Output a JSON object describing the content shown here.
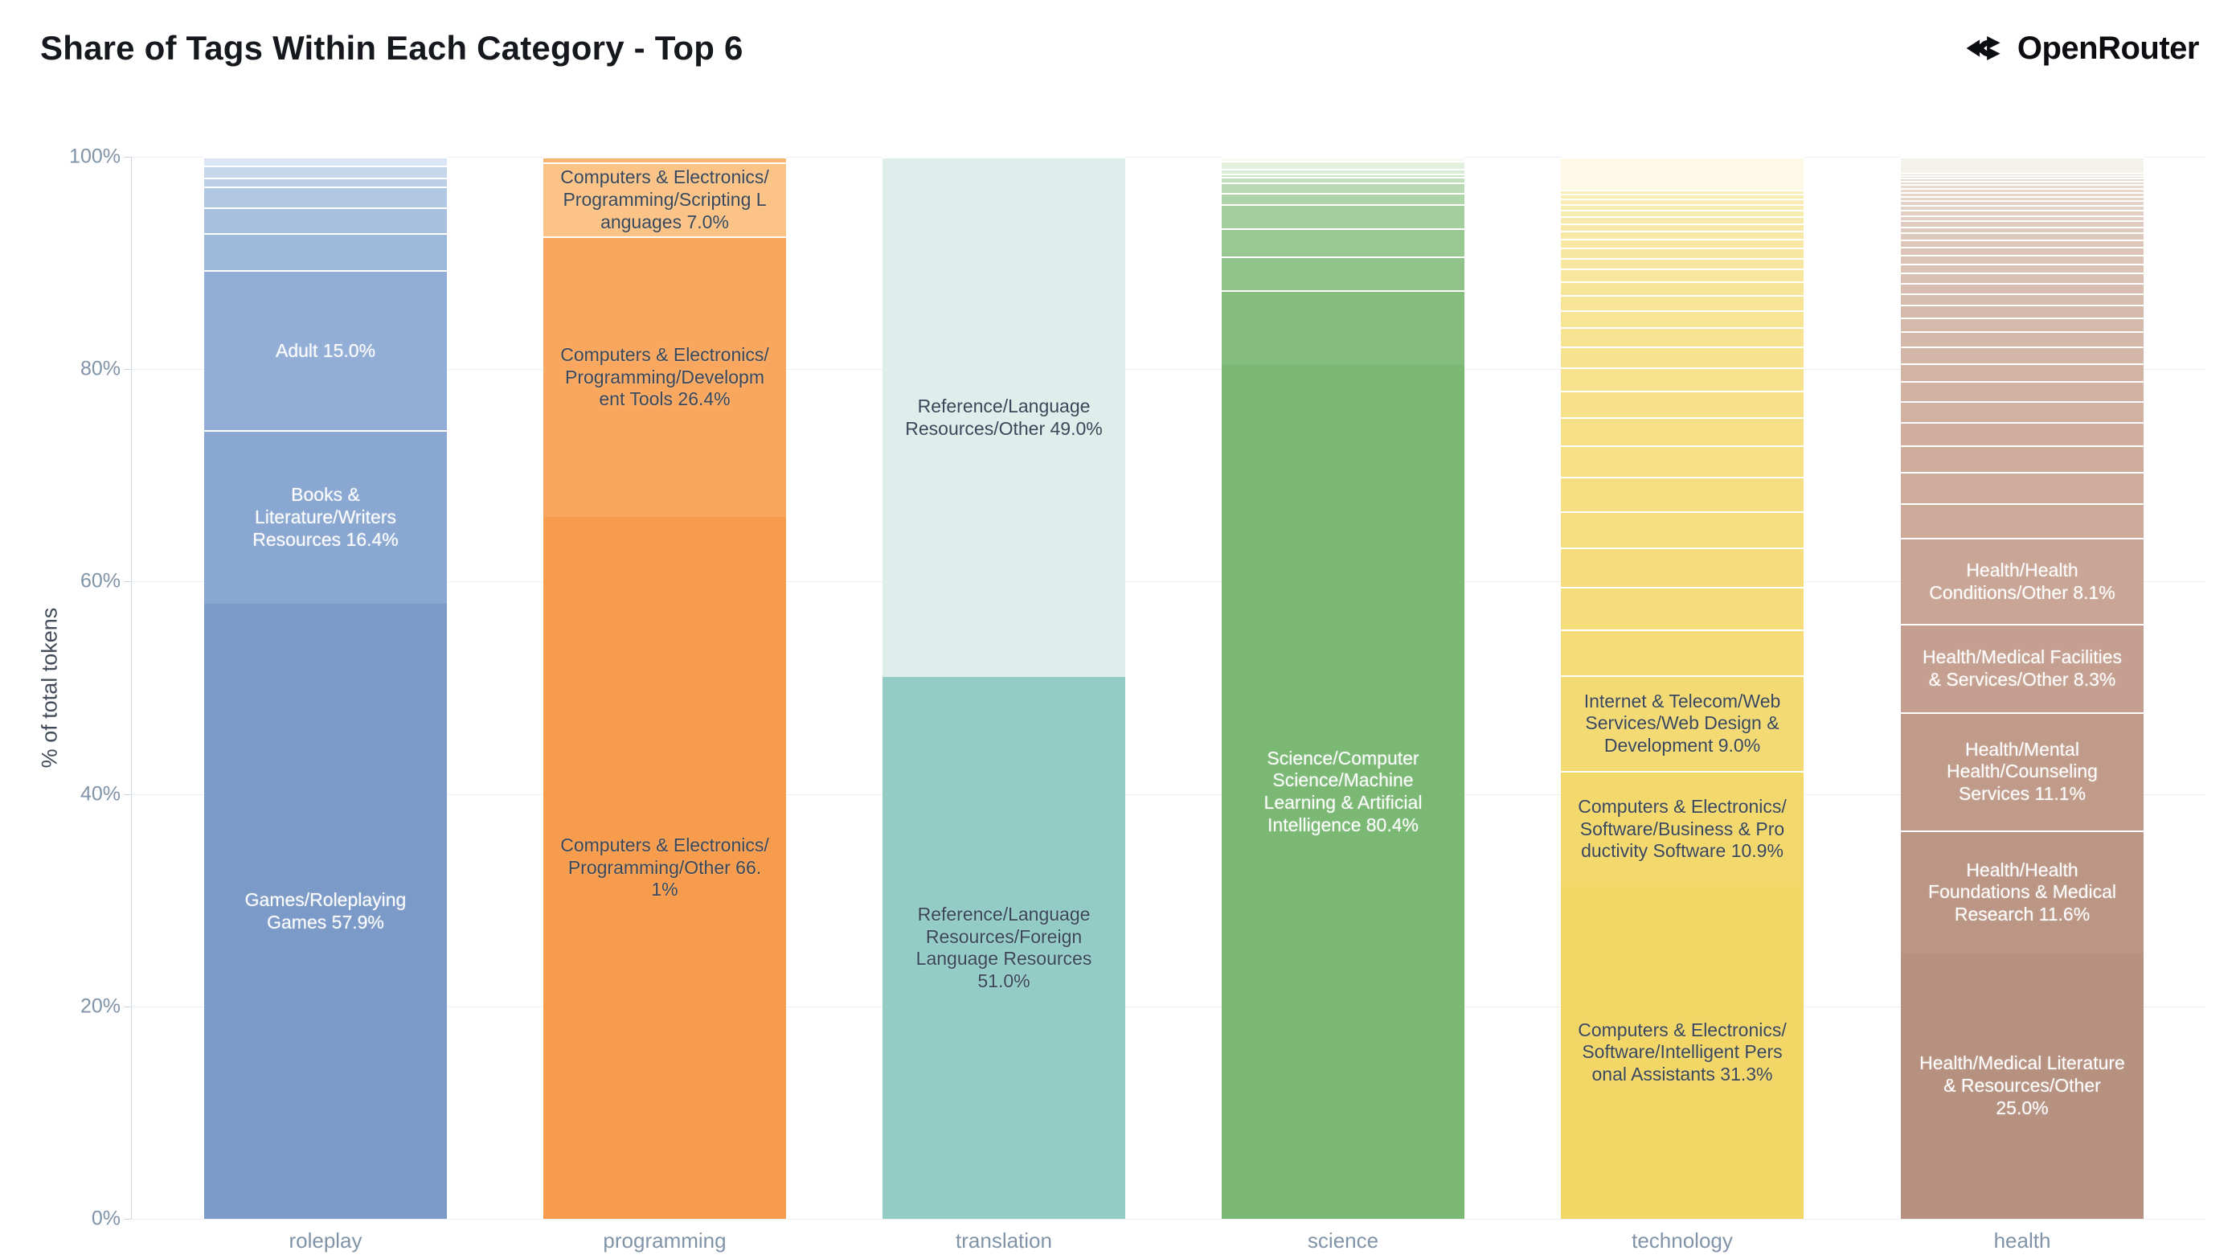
{
  "header": {
    "title": "Share of Tags Within Each Category - Top 6",
    "brand": "OpenRouter"
  },
  "chart_data": {
    "type": "bar",
    "stacking": "percent",
    "title": "Share of Tags Within Each Category - Top 6",
    "xlabel": "",
    "ylabel": "% of total tokens",
    "ylim": [
      0,
      100
    ],
    "yticks": [
      "0%",
      "20%",
      "40%",
      "60%",
      "80%",
      "100%"
    ],
    "grid": true,
    "legend": false,
    "categories": [
      "roleplay",
      "programming",
      "translation",
      "science",
      "technology",
      "health"
    ],
    "bars": [
      {
        "category": "roleplay",
        "segments": [
          {
            "name": "Games/Roleplaying Games",
            "pct": 57.9,
            "label": "Games/Roleplaying Games 57.9%",
            "color": "#7b9ac7",
            "text_color": "#ffffff"
          },
          {
            "name": "Books & Literature/Writers Resources",
            "pct": 16.4,
            "label": "Books & Literature/Writers Resources 16.4%",
            "color": "#8aa7d1",
            "text_color": "#ffffff"
          },
          {
            "name": "Adult",
            "pct": 15.0,
            "label": "Adult 15.0%",
            "color": "#93aed6",
            "text_color": "#ffffff"
          }
        ],
        "unlabeled_small_segments": {
          "values_pct_bottom_to_top": [
            3.5,
            2.4,
            2.0,
            0.8,
            1.2,
            0.8
          ],
          "color_start": "#9db9da",
          "color_end": "#cfdeee",
          "top_color": "#dae6f3"
        }
      },
      {
        "category": "programming",
        "segments": [
          {
            "name": "Computers & Electronics/Programming/Other",
            "pct": 66.1,
            "label": "Computers & Electronics/Programming/Other 66.1%",
            "color": "#f79c4c",
            "text_color": "#3a4759"
          },
          {
            "name": "Computers & Electronics/Programming/Development Tools",
            "pct": 26.4,
            "label": "Computers & Electronics/Programming/Development Tools 26.4%",
            "color": "#f9a75e",
            "text_color": "#3a4759"
          },
          {
            "name": "Computers & Electronics/Programming/Scripting Languages",
            "pct": 7.0,
            "label": "Computers & Electronics/Programming/Scripting Languages 7.0%",
            "color": "#fbc386",
            "text_color": "#3a4759"
          }
        ],
        "unlabeled_small_segments": {
          "values_pct_bottom_to_top": [
            0.5
          ],
          "color_start": "#f8b470",
          "color_end": "#f8b470"
        }
      },
      {
        "category": "translation",
        "segments": [
          {
            "name": "Reference/Language Resources/Foreign Language Resources",
            "pct": 51.0,
            "label": "Reference/Language Resources/Foreign Language Resources 51.0%",
            "color": "#93cbc5",
            "text_color": "#3a4759"
          },
          {
            "name": "Reference/Language Resources/Other",
            "pct": 49.0,
            "label": "Reference/Language Resources/Other 49.0%",
            "color": "#ddeeeb",
            "text_color": "#3a4759"
          }
        ],
        "unlabeled_small_segments": {
          "values_pct_bottom_to_top": [],
          "color_start": "#93cbc5",
          "color_end": "#ddeeeb"
        }
      },
      {
        "category": "science",
        "segments": [
          {
            "name": "Science/Computer Science/Machine Learning & Artificial Intelligence",
            "pct": 80.4,
            "label": "Science/Computer Science/Machine Learning & Artificial Intelligence 80.4%",
            "color": "#7ab874",
            "text_color": "#ffffff"
          }
        ],
        "unlabeled_small_segments": {
          "values_pct_bottom_to_top": [
            7.0,
            3.2,
            2.7,
            2.2,
            1.1,
            1.0,
            0.5,
            0.3,
            0.5,
            0.7,
            0.4
          ],
          "color_start": "#84bd7e",
          "color_end": "#eef6e9",
          "top_color": "#f6faf3"
        }
      },
      {
        "category": "technology",
        "segments": [
          {
            "name": "Computers & Electronics/Software/Intelligent Personal Assistants",
            "pct": 31.3,
            "label": "Computers & Electronics/Software/Intelligent Personal Assistants 31.3%",
            "color": "#f2d666",
            "text_color": "#3a4759"
          },
          {
            "name": "Computers & Electronics/Software/Business & Productivity Software",
            "pct": 10.9,
            "label": "Computers & Electronics/Software/Business & Productivity Software 10.9%",
            "color": "#f3d86b",
            "text_color": "#3a4759"
          },
          {
            "name": "Internet & Telecom/Web Services/Web Design & Development",
            "pct": 9.0,
            "label": "Internet & Telecom/Web Services/Web Design & Development 9.0%",
            "color": "#f4da72",
            "text_color": "#3a4759"
          }
        ],
        "unlabeled_small_segments": {
          "values_pct_bottom_to_top": [
            4.3,
            4.0,
            3.7,
            3.45,
            3.2,
            2.95,
            2.7,
            2.45,
            2.2,
            2.0,
            1.8,
            1.6,
            1.45,
            1.3,
            1.15,
            1.05,
            0.95,
            0.85,
            0.75,
            0.7,
            0.65,
            0.6,
            0.55,
            0.5,
            0.45,
            0.4,
            3.1
          ],
          "color_start": "#f5dc78",
          "color_end": "#f9eebb",
          "top_color": "#fdf9e6"
        }
      },
      {
        "category": "health",
        "segments": [
          {
            "name": "Health/Medical Literature & Resources/Other",
            "pct": 25.0,
            "label": "Health/Medical Literature & Resources/Other 25.0%",
            "color": "#b69180",
            "text_color": "#ffffff"
          },
          {
            "name": "Health/Health Foundations & Medical Research",
            "pct": 11.6,
            "label": "Health/Health Foundations & Medical Research 11.6%",
            "color": "#bb9685",
            "text_color": "#ffffff"
          },
          {
            "name": "Health/Mental Health/Counseling Services",
            "pct": 11.1,
            "label": "Health/Mental Health/Counseling Services 11.1%",
            "color": "#c09b8a",
            "text_color": "#ffffff"
          },
          {
            "name": "Health/Medical Facilities & Services/Other",
            "pct": 8.3,
            "label": "Health/Medical Facilities & Services/Other 8.3%",
            "color": "#c5a090",
            "text_color": "#ffffff"
          },
          {
            "name": "Health/Health Conditions/Other",
            "pct": 8.1,
            "label": "Health/Health Conditions/Other 8.1%",
            "color": "#c9a595",
            "text_color": "#ffffff"
          }
        ],
        "unlabeled_small_segments": {
          "values_pct_bottom_to_top": [
            3.3,
            2.9,
            2.5,
            2.2,
            2.0,
            1.85,
            1.7,
            1.55,
            1.45,
            1.3,
            1.2,
            1.1,
            1.0,
            0.95,
            0.85,
            0.8,
            0.75,
            0.7,
            0.65,
            0.6,
            0.55,
            0.5,
            0.5,
            0.45,
            0.45,
            0.4,
            0.4,
            0.35,
            0.35,
            0.3,
            0.3,
            0.25,
            0.25,
            1.5
          ],
          "color_start": "#cdaa99",
          "color_end": "#ebe2d9",
          "top_color": "#f5f2ec"
        }
      }
    ]
  }
}
